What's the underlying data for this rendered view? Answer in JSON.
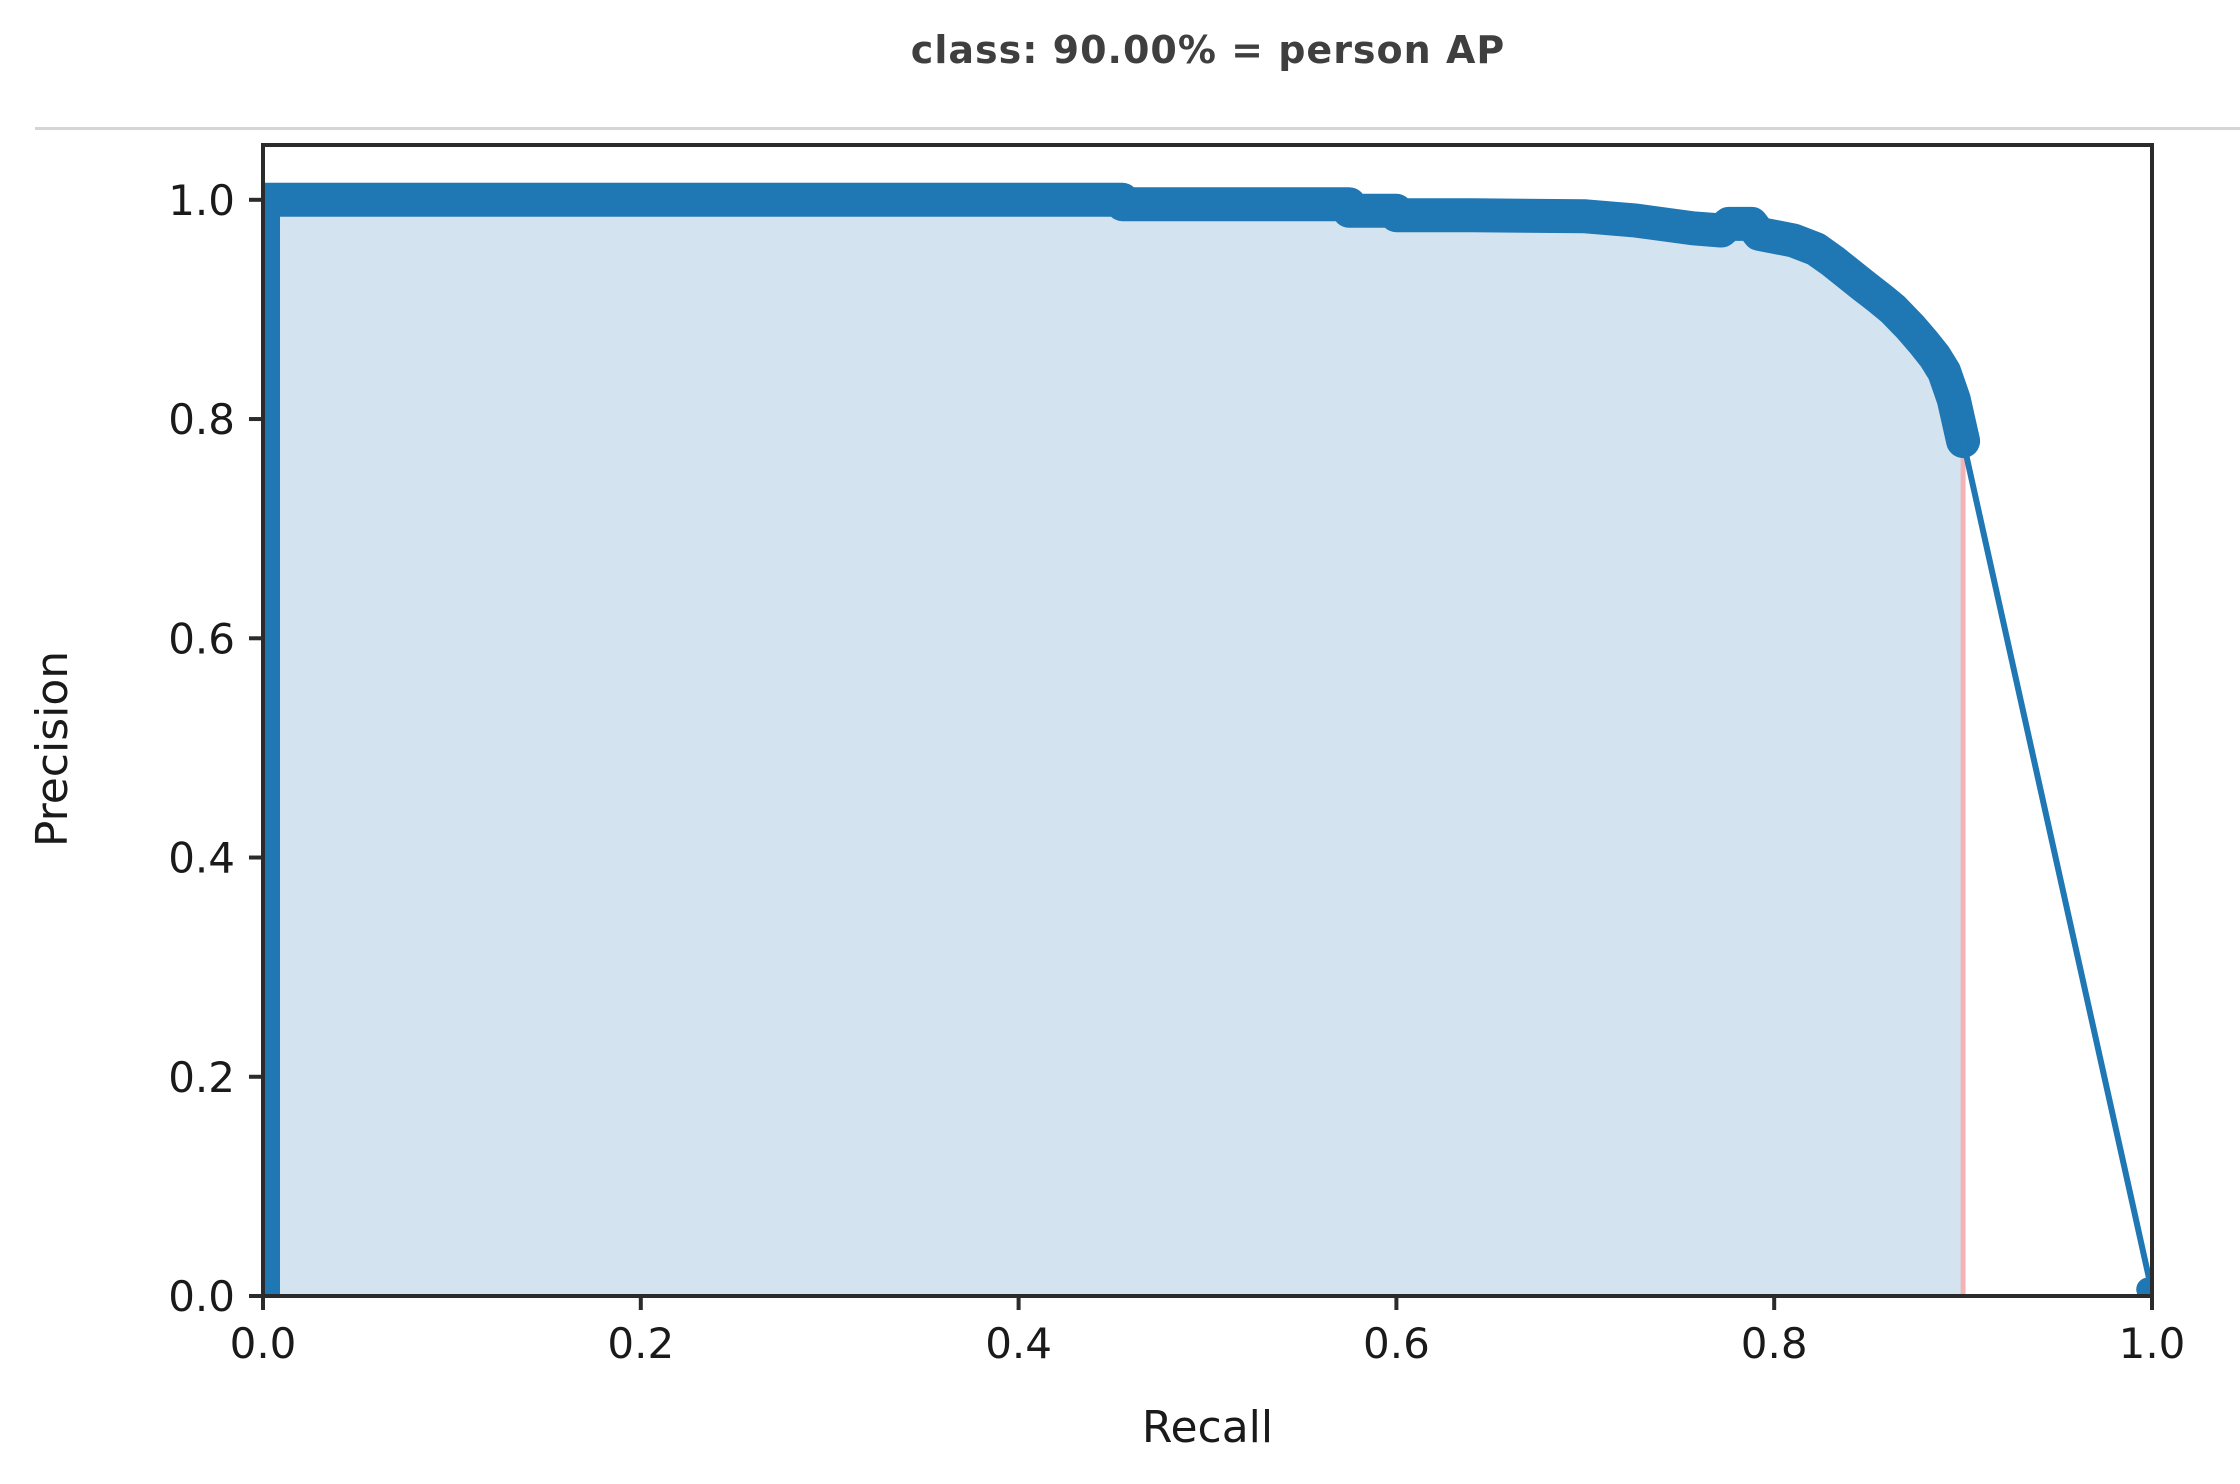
{
  "page": {
    "background": "#ffffff"
  },
  "header": {
    "title": "class: 90.00% = person AP"
  },
  "chart_data": {
    "type": "area",
    "title": "class: 90.00% = person AP",
    "class_name": "person",
    "ap_value": "90.00%",
    "xlabel": "Recall",
    "ylabel": "Precision",
    "xlim": [
      0.0,
      1.0
    ],
    "ylim": [
      0.0,
      1.05
    ],
    "x_ticks": [
      "0.0",
      "0.2",
      "0.4",
      "0.6",
      "0.8",
      "1.0"
    ],
    "y_ticks": [
      "0.0",
      "0.2",
      "0.4",
      "0.6",
      "0.8",
      "1.0"
    ],
    "grid": false,
    "legend": null,
    "colors": {
      "curve": "#1f77b4",
      "fill": "#d3e4f0",
      "recall_cutoff_line": "#f3b3b6",
      "spine": "#2b2b2b",
      "text": "#1a1a1a",
      "title_text": "#3f3f3f",
      "separator": "#d5d5d5"
    },
    "series": [
      {
        "name": "precision-recall-curve",
        "points": [
          [
            0.0,
            0.0
          ],
          [
            0.0,
            1.0
          ],
          [
            0.455,
            1.0
          ],
          [
            0.455,
            0.996
          ],
          [
            0.575,
            0.996
          ],
          [
            0.575,
            0.99
          ],
          [
            0.6,
            0.99
          ],
          [
            0.6,
            0.986
          ],
          [
            0.64,
            0.986
          ],
          [
            0.7,
            0.985
          ],
          [
            0.727,
            0.981
          ],
          [
            0.757,
            0.974
          ],
          [
            0.772,
            0.972
          ],
          [
            0.776,
            0.978
          ],
          [
            0.788,
            0.978
          ],
          [
            0.792,
            0.969
          ],
          [
            0.81,
            0.963
          ],
          [
            0.822,
            0.955
          ],
          [
            0.831,
            0.944
          ],
          [
            0.847,
            0.922
          ],
          [
            0.856,
            0.91
          ],
          [
            0.863,
            0.9
          ],
          [
            0.872,
            0.884
          ],
          [
            0.879,
            0.87
          ],
          [
            0.885,
            0.857
          ],
          [
            0.89,
            0.843
          ],
          [
            0.895,
            0.818
          ],
          [
            0.9,
            0.78
          ]
        ]
      },
      {
        "name": "tail-segment",
        "points": [
          [
            0.9,
            0.78
          ],
          [
            1.0,
            0.004
          ]
        ]
      }
    ],
    "fill_region": {
      "x_start": 0.0,
      "x_end": 0.9
    },
    "annotations": [
      {
        "type": "vline",
        "x": 0.9,
        "y_top": 0.78,
        "y_bottom": 0.0
      }
    ],
    "markers": {
      "origin": [
        0.0,
        0.0
      ],
      "end": [
        0.998,
        0.006
      ]
    }
  }
}
